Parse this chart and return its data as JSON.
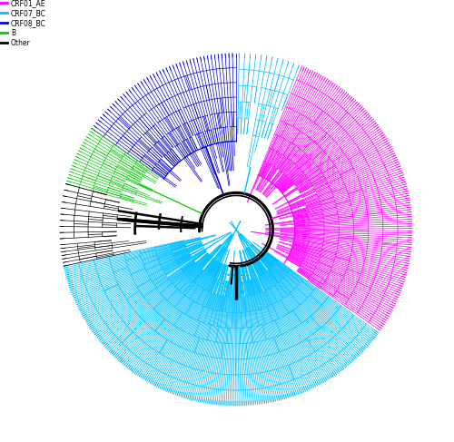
{
  "legend_entries": [
    {
      "label": "CRF01_AE",
      "color": "#FF00FF"
    },
    {
      "label": "CRF07_BC",
      "color": "#00BFFF"
    },
    {
      "label": "CRF08_BC",
      "color": "#0000CD"
    },
    {
      "label": "B",
      "color": "#00CC00"
    },
    {
      "label": "Other",
      "color": "#000000"
    }
  ],
  "background_color": "#FFFFFF",
  "fig_width": 5.0,
  "fig_height": 4.87,
  "dpi": 100,
  "colors": {
    "CRF01_AE": "#FF00FF",
    "CRF07_BC": "#00BFFF",
    "CRF08_BC": "#0000CD",
    "B": "#00CC00",
    "Other": "#000000"
  },
  "tree": {
    "r_outer": 0.96,
    "r_inner_min": 0.18,
    "leaf_lw": 0.5,
    "internal_lw": 0.6,
    "trunk_lw": 1.8
  }
}
